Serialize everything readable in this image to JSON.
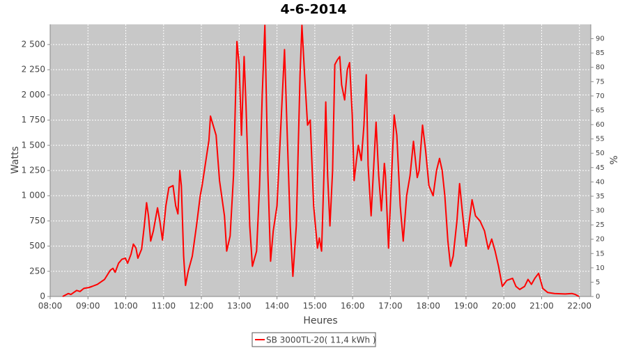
{
  "chart_data": {
    "type": "line",
    "title": "4-6-2014",
    "x_label": "Heures",
    "y_label": "Watts",
    "y2_label": "%",
    "x": [
      8.33,
      8.48,
      8.55,
      8.7,
      8.79,
      8.89,
      9.03,
      9.11,
      9.25,
      9.44,
      9.59,
      9.66,
      9.72,
      9.81,
      9.9,
      9.99,
      10.05,
      10.14,
      10.2,
      10.27,
      10.32,
      10.42,
      10.49,
      10.55,
      10.6,
      10.66,
      10.73,
      10.84,
      10.9,
      10.97,
      11.06,
      11.14,
      11.25,
      11.32,
      11.38,
      11.43,
      11.47,
      11.53,
      11.58,
      11.65,
      11.76,
      11.87,
      11.97,
      12.02,
      12.2,
      12.24,
      12.39,
      12.48,
      12.61,
      12.67,
      12.76,
      12.85,
      12.94,
      13.0,
      13.06,
      13.13,
      13.18,
      13.28,
      13.35,
      13.46,
      13.54,
      13.61,
      13.68,
      13.76,
      13.83,
      13.9,
      14.0,
      14.09,
      14.2,
      14.28,
      14.35,
      14.42,
      14.51,
      14.61,
      14.66,
      14.73,
      14.81,
      14.88,
      14.97,
      15.07,
      15.12,
      15.18,
      15.25,
      15.29,
      15.34,
      15.4,
      15.47,
      15.53,
      15.6,
      15.66,
      15.71,
      15.79,
      15.86,
      15.92,
      15.99,
      16.04,
      16.1,
      16.15,
      16.23,
      16.3,
      16.36,
      16.41,
      16.49,
      16.56,
      16.62,
      16.69,
      16.76,
      16.84,
      16.87,
      16.95,
      17.02,
      17.1,
      17.17,
      17.26,
      17.34,
      17.43,
      17.52,
      17.61,
      17.71,
      17.76,
      17.85,
      17.93,
      18.02,
      18.13,
      18.22,
      18.3,
      18.37,
      18.44,
      18.52,
      18.59,
      18.66,
      18.76,
      18.83,
      18.9,
      19.0,
      19.07,
      19.16,
      19.25,
      19.37,
      19.49,
      19.59,
      19.68,
      19.77,
      19.86,
      19.96,
      20.08,
      20.23,
      20.32,
      20.42,
      20.55,
      20.64,
      20.73,
      20.82,
      20.92,
      21.03,
      21.16,
      21.34,
      21.62,
      21.8,
      21.89,
      21.99
    ],
    "series": [
      {
        "name": "SB 3000TL-20( 11,4 kWh )",
        "color": "#ff0000",
        "values": [
          0,
          30,
          20,
          60,
          50,
          80,
          90,
          100,
          120,
          170,
          260,
          280,
          240,
          330,
          370,
          380,
          330,
          420,
          520,
          480,
          380,
          470,
          700,
          930,
          800,
          550,
          650,
          880,
          750,
          560,
          900,
          1080,
          1100,
          900,
          820,
          1250,
          1100,
          400,
          110,
          250,
          400,
          700,
          1000,
          1100,
          1550,
          1790,
          1600,
          1150,
          800,
          450,
          600,
          1200,
          2530,
          2300,
          1600,
          2380,
          1900,
          700,
          300,
          450,
          1100,
          2000,
          2690,
          1200,
          350,
          650,
          900,
          1600,
          2450,
          1500,
          700,
          200,
          700,
          2200,
          2690,
          2200,
          1700,
          1750,
          900,
          480,
          580,
          450,
          1300,
          1930,
          1200,
          700,
          1250,
          2300,
          2350,
          2380,
          2100,
          1950,
          2250,
          2320,
          1800,
          1150,
          1350,
          1500,
          1350,
          1700,
          2200,
          1300,
          800,
          1300,
          1730,
          1200,
          850,
          1320,
          1200,
          480,
          1100,
          1800,
          1600,
          900,
          550,
          1000,
          1200,
          1540,
          1180,
          1250,
          1700,
          1450,
          1100,
          1000,
          1250,
          1370,
          1250,
          1000,
          550,
          300,
          400,
          750,
          1120,
          850,
          500,
          700,
          960,
          800,
          750,
          650,
          470,
          570,
          450,
          300,
          100,
          160,
          180,
          100,
          70,
          100,
          170,
          120,
          180,
          230,
          80,
          40,
          30,
          25,
          30,
          20,
          0
        ]
      }
    ],
    "xlim": [
      8,
      22.3
    ],
    "xticks": [
      {
        "value": 8,
        "label": "08:00"
      },
      {
        "value": 9,
        "label": "09:00"
      },
      {
        "value": 10,
        "label": "10:00"
      },
      {
        "value": 11,
        "label": "11:00"
      },
      {
        "value": 12,
        "label": "12:00"
      },
      {
        "value": 13,
        "label": "13:00"
      },
      {
        "value": 14,
        "label": "14:00"
      },
      {
        "value": 15,
        "label": "15:00"
      },
      {
        "value": 16,
        "label": "16:00"
      },
      {
        "value": 17,
        "label": "17:00"
      },
      {
        "value": 18,
        "label": "18:00"
      },
      {
        "value": 19,
        "label": "19:00"
      },
      {
        "value": 20,
        "label": "20:00"
      },
      {
        "value": 21,
        "label": "21:00"
      },
      {
        "value": 22,
        "label": "22:00"
      }
    ],
    "ylim": [
      0,
      2700
    ],
    "yticks": [
      0,
      250,
      500,
      750,
      {
        "value": 1000,
        "label": "1 000"
      },
      {
        "value": 1250,
        "label": "1 250"
      },
      {
        "value": 1500,
        "label": "1 500"
      },
      {
        "value": 1750,
        "label": "1 750"
      },
      {
        "value": 2000,
        "label": "2 000"
      },
      {
        "value": 2250,
        "label": "2 250"
      },
      {
        "value": 2500,
        "label": "2 500"
      }
    ],
    "y2lim": [
      0,
      95
    ],
    "y2ticks": [
      0,
      5,
      10,
      15,
      20,
      25,
      30,
      35,
      40,
      45,
      50,
      55,
      60,
      65,
      70,
      75,
      80,
      85,
      90
    ],
    "grid": true,
    "legend": "bottom"
  }
}
